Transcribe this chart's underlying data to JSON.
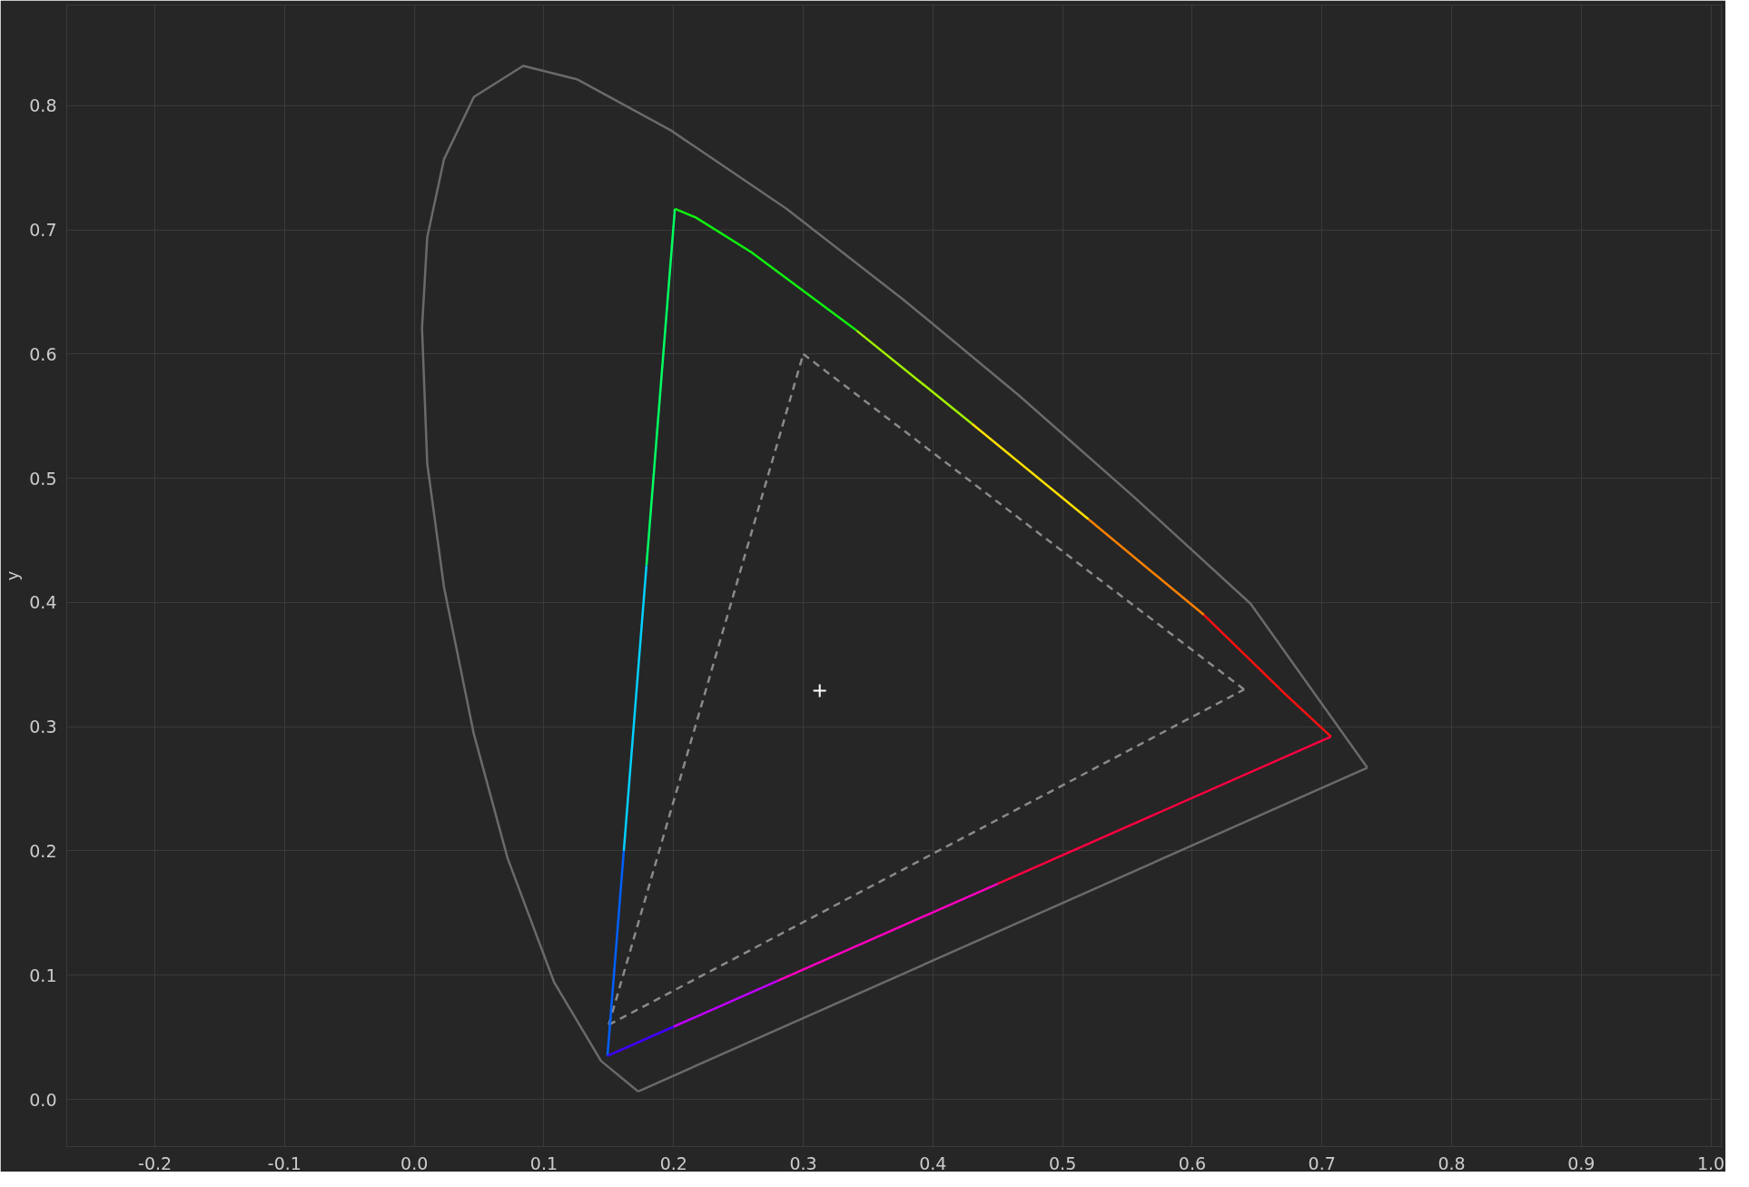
{
  "chart_data": {
    "type": "line",
    "ylabel": "y",
    "xlim": [
      -0.268,
      1.008
    ],
    "ylim": [
      -0.038,
      0.881
    ],
    "xticks": [
      {
        "value": -0.2,
        "label": "-0.2"
      },
      {
        "value": -0.1,
        "label": "-0.1"
      },
      {
        "value": 0,
        "label": "0.0"
      },
      {
        "value": 0.1,
        "label": "0.1"
      },
      {
        "value": 0.2,
        "label": "0.2"
      },
      {
        "value": 0.3,
        "label": "0.3"
      },
      {
        "value": 0.4,
        "label": "0.4"
      },
      {
        "value": 0.5,
        "label": "0.5"
      },
      {
        "value": 0.6,
        "label": "0.6"
      },
      {
        "value": 0.7,
        "label": "0.7"
      },
      {
        "value": 0.8,
        "label": "0.8"
      },
      {
        "value": 0.9,
        "label": "0.9"
      },
      {
        "value": 1.0,
        "label": "1.0"
      }
    ],
    "yticks": [
      {
        "value": 0,
        "label": "0.0"
      },
      {
        "value": 0.1,
        "label": "0.1"
      },
      {
        "value": 0.2,
        "label": "0.2"
      },
      {
        "value": 0.3,
        "label": "0.3"
      },
      {
        "value": 0.4,
        "label": "0.4"
      },
      {
        "value": 0.5,
        "label": "0.5"
      },
      {
        "value": 0.6,
        "label": "0.6"
      },
      {
        "value": 0.7,
        "label": "0.7"
      },
      {
        "value": 0.8,
        "label": "0.8"
      }
    ],
    "grid": true,
    "series": [
      {
        "color": "#6a6a6a",
        "x": [
          0.1726,
          0.144,
          0.108,
          0.072,
          0.046,
          0.023,
          0.01,
          0.006,
          0.01,
          0.023,
          0.046,
          0.084,
          0.126,
          0.198,
          0.287,
          0.377,
          0.466,
          0.555,
          0.645,
          0.735
        ],
        "values": [
          0.0064,
          0.031,
          0.094,
          0.194,
          0.294,
          0.412,
          0.512,
          0.621,
          0.694,
          0.757,
          0.807,
          0.832,
          0.821,
          0.78,
          0.717,
          0.644,
          0.567,
          0.485,
          0.399,
          0.267
        ]
      },
      {
        "color": "#6a6a6a",
        "x": [
          0.1726,
          0.735
        ],
        "values": [
          0.0064,
          0.267
        ]
      },
      {
        "color": "#8a8a8a",
        "line_style": "dashed",
        "x": [
          0.15,
          0.3
        ],
        "values": [
          0.06,
          0.6
        ]
      },
      {
        "color": "#8a8a8a",
        "line_style": "dashed",
        "x": [
          0.3,
          0.64
        ],
        "values": [
          0.6,
          0.33
        ]
      },
      {
        "color": "#8a8a8a",
        "line_style": "dashed",
        "x": [
          0.15,
          0.64
        ],
        "values": [
          0.06,
          0.33
        ]
      },
      {
        "color": "#0060ff",
        "x": [
          0.149,
          0.1616
        ],
        "values": [
          0.035,
          0.2
        ]
      },
      {
        "color": "#00d0ff",
        "x": [
          0.1616,
          0.1791
        ],
        "values": [
          0.2,
          0.43
        ]
      },
      {
        "color": "#00ff60",
        "x": [
          0.1791,
          0.201
        ],
        "values": [
          0.43,
          0.717
        ]
      },
      {
        "color": "#10f010",
        "x": [
          0.201,
          0.217,
          0.26,
          0.341
        ],
        "values": [
          0.717,
          0.71,
          0.682,
          0.619
        ]
      },
      {
        "color": "#a0f000",
        "x": [
          0.341,
          0.43
        ],
        "values": [
          0.619,
          0.544
        ]
      },
      {
        "color": "#ffe000",
        "x": [
          0.43,
          0.52
        ],
        "values": [
          0.544,
          0.467
        ]
      },
      {
        "color": "#ff8000",
        "x": [
          0.52,
          0.609
        ],
        "values": [
          0.467,
          0.39
        ]
      },
      {
        "color": "#ff1010",
        "x": [
          0.609,
          0.672,
          0.707
        ],
        "values": [
          0.39,
          0.326,
          0.292
        ]
      },
      {
        "color": "#ff0040",
        "x": [
          0.707,
          0.45
        ],
        "values": [
          0.292,
          0.1736
        ]
      },
      {
        "color": "#ff00c0",
        "x": [
          0.45,
          0.28
        ],
        "values": [
          0.1736,
          0.0953
        ]
      },
      {
        "color": "#c000ff",
        "x": [
          0.28,
          0.2
        ],
        "values": [
          0.0953,
          0.0585
        ]
      },
      {
        "color": "#4000ff",
        "x": [
          0.2,
          0.149
        ],
        "values": [
          0.0585,
          0.035
        ]
      },
      {
        "type": "scatter",
        "marker": "cross",
        "color": "#ffffff",
        "x": [
          0.3127
        ],
        "values": [
          0.329
        ]
      }
    ]
  }
}
